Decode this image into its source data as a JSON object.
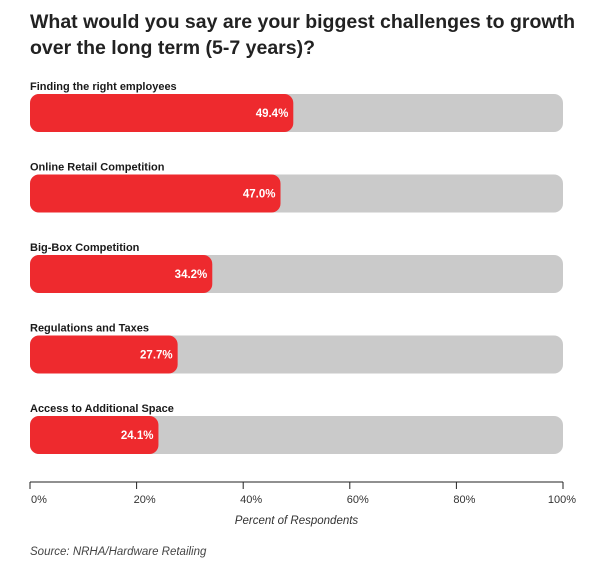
{
  "chart_data": {
    "type": "bar",
    "orientation": "horizontal",
    "title": "What would you say are your biggest challenges to growth over the long term (5-7 years)?",
    "categories": [
      "Finding the right employees",
      "Online Retail Competition",
      "Big-Box Competition",
      "Regulations and Taxes",
      "Access to Additional Space"
    ],
    "values": [
      49.4,
      47.0,
      34.2,
      27.7,
      24.1
    ],
    "value_labels": [
      "49.4%",
      "47.0%",
      "34.2%",
      "27.7%",
      "24.1%"
    ],
    "xlim": [
      0,
      100
    ],
    "ticks": [
      0,
      20,
      40,
      60,
      80,
      100
    ],
    "tick_labels": [
      "0%",
      "20%",
      "40%",
      "60%",
      "80%",
      "100%"
    ],
    "xlabel": "Percent of Respondents",
    "ylabel": "",
    "grid": false,
    "colors": {
      "bar": "#ee2a2e",
      "track": "#cacaca",
      "axis": "#222222"
    }
  },
  "source": "Source: NRHA/Hardware Retailing"
}
